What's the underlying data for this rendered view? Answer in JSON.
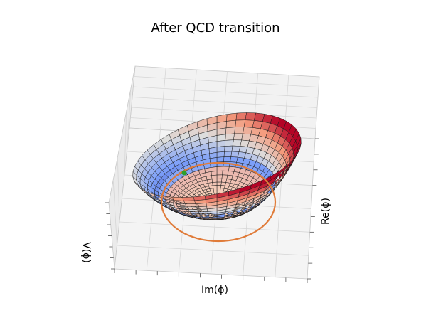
{
  "chart_data": {
    "type": "surface3d",
    "title": "After QCD transition",
    "xlabel": "Re(ϕ)",
    "ylabel": "Im(ϕ)",
    "zlabel": "V(ϕ)",
    "surface": "mexican-hat potential with tilted minimum",
    "colormap": "coolwarm",
    "grid": true,
    "ticks_labeled": false,
    "annotations": [
      {
        "kind": "ring",
        "description": "orange circle along the valley of minima",
        "color": "#e07b39"
      },
      {
        "kind": "point",
        "description": "green dot marking the vacuum",
        "color": "#2ca02c"
      }
    ]
  }
}
